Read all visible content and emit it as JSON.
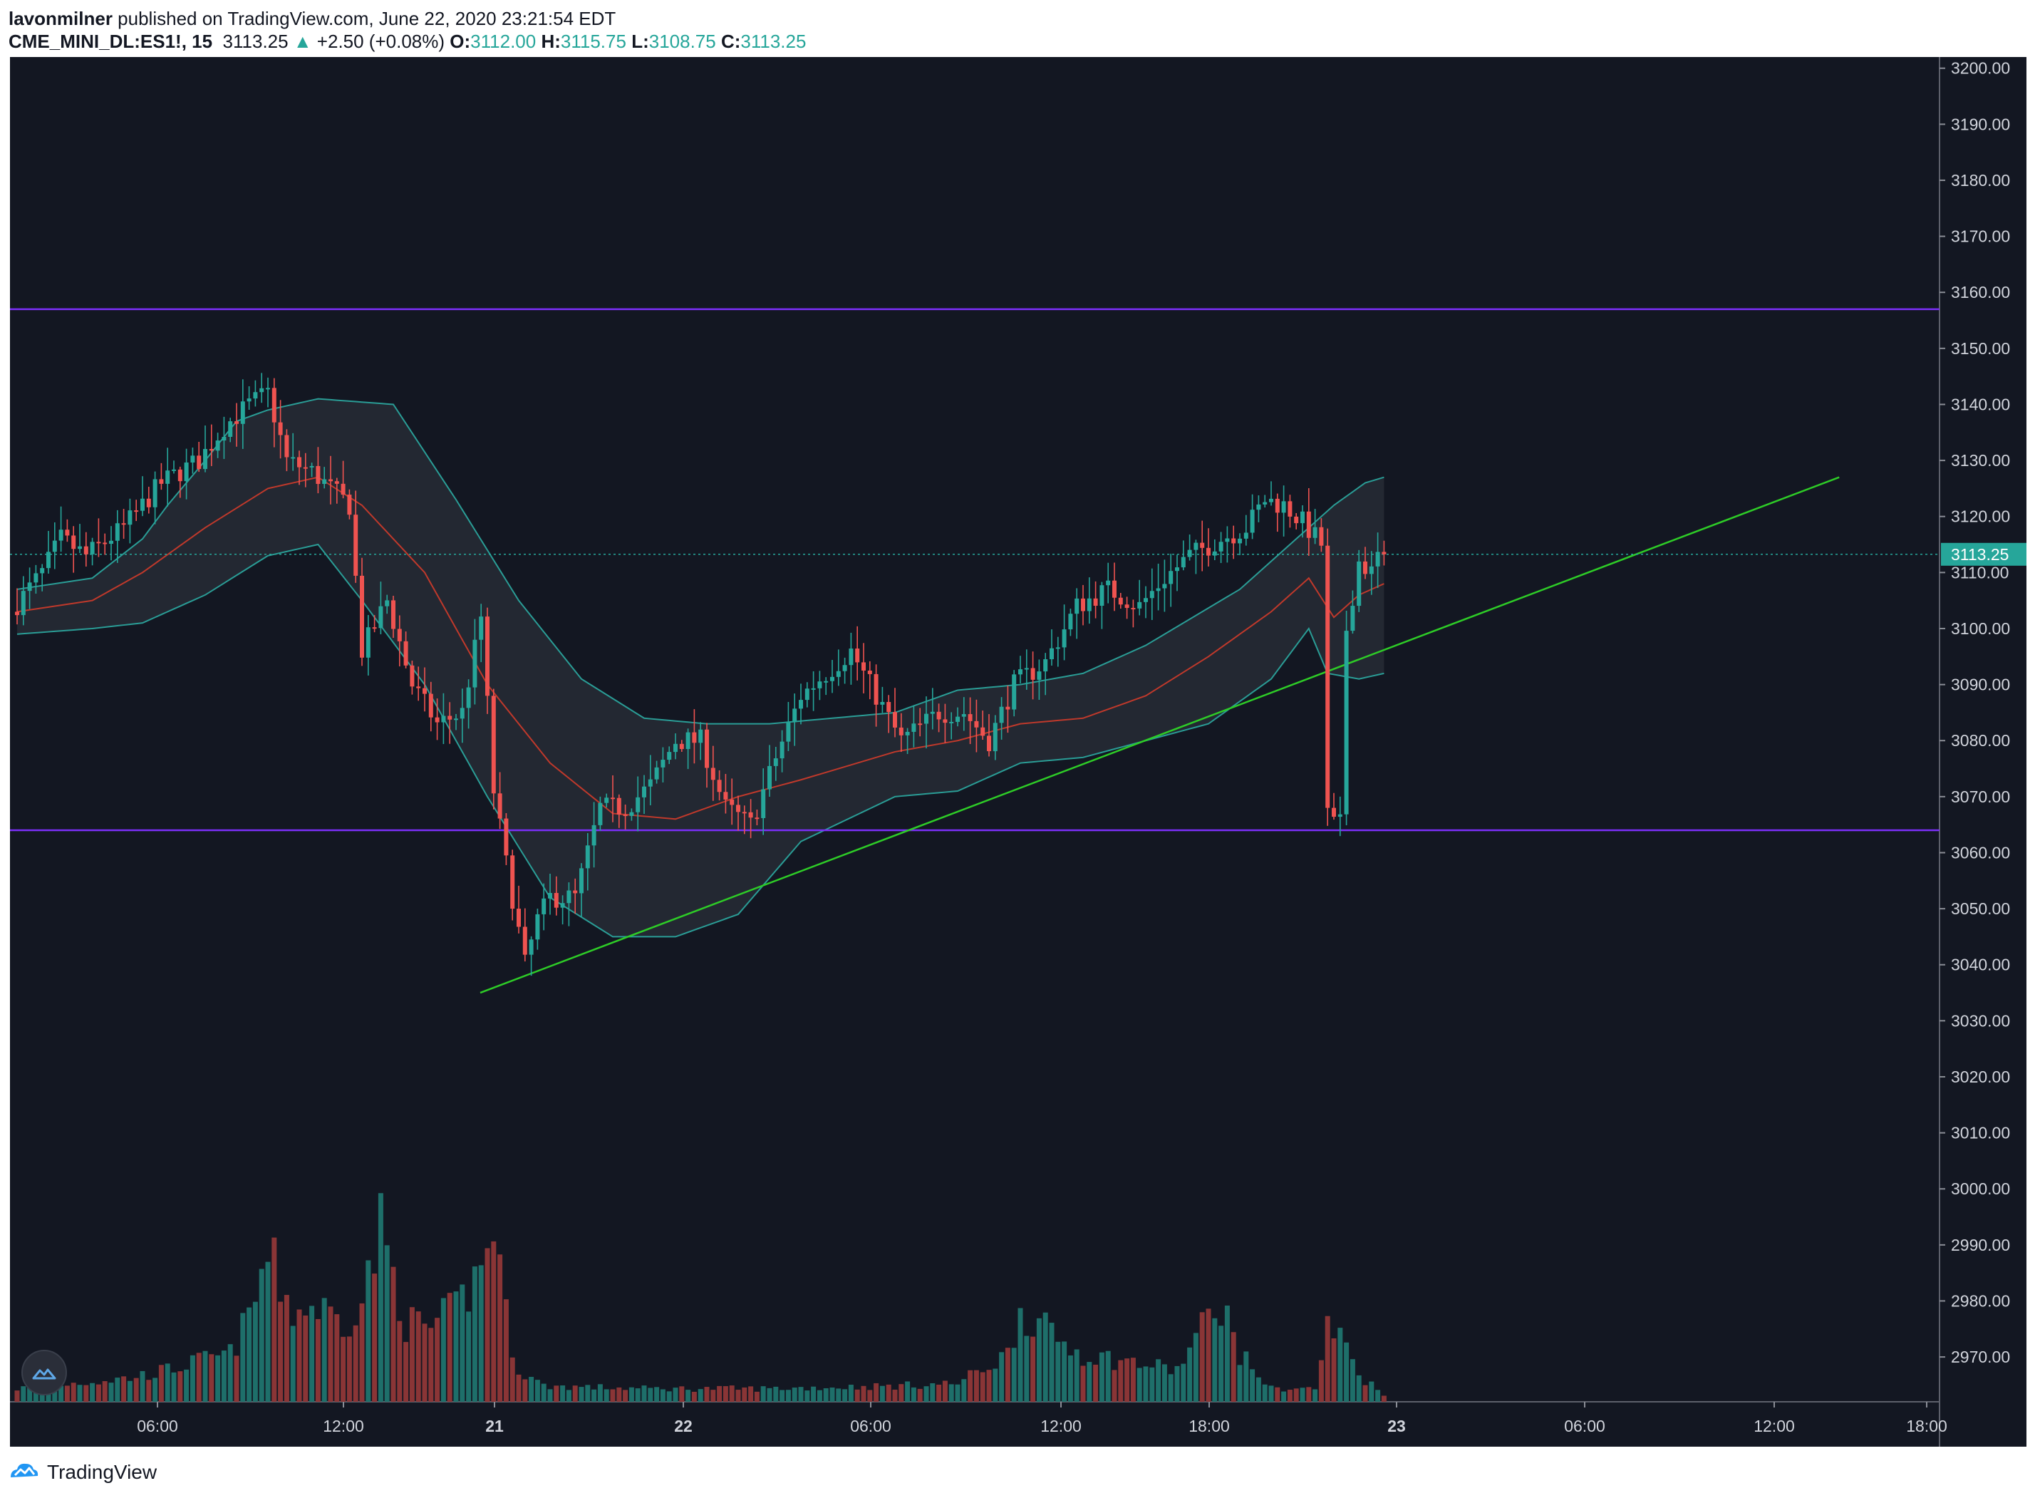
{
  "header": {
    "author": "lavonmilner",
    "published_text": "published on TradingView.com, June 22, 2020 23:21:54 EDT",
    "symbol": "CME_MINI_DL:ES1!, 15",
    "last_price": "3113.25",
    "change_arrow": "▲",
    "change": "+2.50 (+0.08%)",
    "open_label": "O:",
    "open": "3112.00",
    "high_label": "H:",
    "high": "3115.75",
    "low_label": "L:",
    "low": "3108.75",
    "close_label": "C:",
    "close": "3113.25"
  },
  "footer": {
    "brand": "TradingView",
    "logo_icon": "tradingview-logo-icon"
  },
  "badge": {
    "icon": "tradingview-cloud-icon"
  },
  "colors": {
    "background": "#131722",
    "up": "#26a69a",
    "down": "#ef5350",
    "vol_up": "#1e6f6a",
    "vol_down": "#8a3536",
    "level": "#7b2ff7",
    "trendline": "#2ecc27",
    "band_fill": "#262a34",
    "band_line": "#2a9d96",
    "basis": "#c0392b",
    "price_tag": "#26a69a"
  },
  "chart_data": {
    "type": "candlestick",
    "symbol": "CME_MINI_DL:ES1!",
    "interval": "15",
    "ylim": [
      2962,
      3202
    ],
    "y_ticks": [
      "3200.00",
      "3190.00",
      "3180.00",
      "3170.00",
      "3160.00",
      "3150.00",
      "3140.00",
      "3130.00",
      "3120.00",
      "3110.00",
      "3100.00",
      "3090.00",
      "3080.00",
      "3070.00",
      "3060.00",
      "3050.00",
      "3040.00",
      "3030.00",
      "3020.00",
      "3010.00",
      "3000.00",
      "2990.00",
      "2980.00",
      "2970.00"
    ],
    "x_ticks": [
      "06:00",
      "12:00",
      "21",
      "22",
      "06:00",
      "12:00",
      "18:00",
      "23",
      "06:00",
      "12:00",
      "18:00"
    ],
    "last_price_label": "3113.25",
    "horizontal_levels": [
      3157,
      3064
    ],
    "trendline": {
      "start": [
        0,
        3035
      ],
      "end": [
        284,
        3127
      ]
    },
    "bands": {
      "upper": [
        [
          0,
          3107
        ],
        [
          12,
          3109
        ],
        [
          20,
          3116
        ],
        [
          24,
          3122
        ],
        [
          30,
          3130
        ],
        [
          35,
          3137
        ],
        [
          40,
          3139
        ],
        [
          48,
          3141
        ],
        [
          60,
          3140
        ],
        [
          70,
          3123
        ],
        [
          80,
          3105
        ],
        [
          90,
          3091
        ],
        [
          100,
          3084
        ],
        [
          110,
          3083
        ],
        [
          120,
          3083
        ],
        [
          140,
          3085
        ],
        [
          150,
          3089
        ],
        [
          160,
          3090
        ],
        [
          170,
          3092
        ],
        [
          180,
          3097
        ],
        [
          195,
          3107
        ],
        [
          203,
          3115
        ],
        [
          210,
          3122
        ],
        [
          215,
          3126
        ],
        [
          218,
          3127
        ]
      ],
      "basis": [
        [
          0,
          3103
        ],
        [
          12,
          3105
        ],
        [
          20,
          3110
        ],
        [
          30,
          3118
        ],
        [
          40,
          3125
        ],
        [
          48,
          3127
        ],
        [
          55,
          3122
        ],
        [
          65,
          3110
        ],
        [
          75,
          3090
        ],
        [
          85,
          3076
        ],
        [
          95,
          3067
        ],
        [
          105,
          3066
        ],
        [
          115,
          3070
        ],
        [
          125,
          3073
        ],
        [
          140,
          3078
        ],
        [
          150,
          3080
        ],
        [
          160,
          3083
        ],
        [
          170,
          3084
        ],
        [
          180,
          3088
        ],
        [
          190,
          3095
        ],
        [
          200,
          3103
        ],
        [
          206,
          3109
        ],
        [
          210,
          3102
        ],
        [
          214,
          3106
        ],
        [
          218,
          3108
        ]
      ],
      "lower": [
        [
          0,
          3099
        ],
        [
          12,
          3100
        ],
        [
          20,
          3101
        ],
        [
          30,
          3106
        ],
        [
          40,
          3113
        ],
        [
          48,
          3115
        ],
        [
          55,
          3105
        ],
        [
          65,
          3090
        ],
        [
          75,
          3070
        ],
        [
          85,
          3052
        ],
        [
          95,
          3045
        ],
        [
          105,
          3045
        ],
        [
          115,
          3049
        ],
        [
          125,
          3062
        ],
        [
          140,
          3070
        ],
        [
          150,
          3071
        ],
        [
          160,
          3076
        ],
        [
          170,
          3077
        ],
        [
          180,
          3080
        ],
        [
          190,
          3083
        ],
        [
          200,
          3091
        ],
        [
          206,
          3100
        ],
        [
          209,
          3092
        ],
        [
          214,
          3091
        ],
        [
          218,
          3092
        ]
      ]
    },
    "price_path": [
      [
        0,
        3103
      ],
      [
        5,
        3110
      ],
      [
        8,
        3116
      ],
      [
        12,
        3113
      ],
      [
        18,
        3118
      ],
      [
        24,
        3126
      ],
      [
        30,
        3130
      ],
      [
        34,
        3136
      ],
      [
        38,
        3140
      ],
      [
        41,
        3142
      ],
      [
        44,
        3130
      ],
      [
        48,
        3128
      ],
      [
        51,
        3125
      ],
      [
        54,
        3122
      ],
      [
        56,
        3096
      ],
      [
        60,
        3105
      ],
      [
        64,
        3090
      ],
      [
        68,
        3083
      ],
      [
        72,
        3085
      ],
      [
        75,
        3102
      ],
      [
        77,
        3071
      ],
      [
        79,
        3058
      ],
      [
        82,
        3040
      ],
      [
        84,
        3048
      ],
      [
        86,
        3052
      ],
      [
        90,
        3052
      ],
      [
        94,
        3068
      ],
      [
        98,
        3068
      ],
      [
        102,
        3072
      ],
      [
        106,
        3080
      ],
      [
        110,
        3080
      ],
      [
        114,
        3068
      ],
      [
        118,
        3065
      ],
      [
        122,
        3077
      ],
      [
        126,
        3088
      ],
      [
        130,
        3092
      ],
      [
        134,
        3096
      ],
      [
        138,
        3088
      ],
      [
        142,
        3080
      ],
      [
        148,
        3085
      ],
      [
        152,
        3085
      ],
      [
        156,
        3080
      ],
      [
        160,
        3090
      ],
      [
        165,
        3094
      ],
      [
        170,
        3104
      ],
      [
        175,
        3107
      ],
      [
        180,
        3104
      ],
      [
        184,
        3109
      ],
      [
        188,
        3113
      ],
      [
        193,
        3116
      ],
      [
        197,
        3118
      ],
      [
        200,
        3123
      ],
      [
        203,
        3122
      ],
      [
        206,
        3119
      ],
      [
        209,
        3115
      ],
      [
        210,
        3065
      ],
      [
        212,
        3065
      ],
      [
        213,
        3100
      ],
      [
        215,
        3112
      ],
      [
        217,
        3110
      ],
      [
        218,
        3113
      ]
    ],
    "volume_profile": [
      [
        0,
        5
      ],
      [
        18,
        9
      ],
      [
        24,
        12
      ],
      [
        30,
        16
      ],
      [
        34,
        18
      ],
      [
        37,
        32
      ],
      [
        40,
        55
      ],
      [
        44,
        34
      ],
      [
        48,
        36
      ],
      [
        52,
        30
      ],
      [
        55,
        38
      ],
      [
        58,
        65
      ],
      [
        62,
        30
      ],
      [
        66,
        28
      ],
      [
        70,
        35
      ],
      [
        74,
        50
      ],
      [
        76,
        70
      ],
      [
        78,
        32
      ],
      [
        80,
        12
      ],
      [
        84,
        6
      ],
      [
        100,
        5
      ],
      [
        120,
        5
      ],
      [
        140,
        6
      ],
      [
        150,
        7
      ],
      [
        158,
        18
      ],
      [
        160,
        35
      ],
      [
        165,
        25
      ],
      [
        170,
        18
      ],
      [
        180,
        14
      ],
      [
        185,
        12
      ],
      [
        190,
        32
      ],
      [
        192,
        38
      ],
      [
        195,
        18
      ],
      [
        200,
        5
      ],
      [
        207,
        5
      ],
      [
        209,
        28
      ],
      [
        212,
        22
      ],
      [
        214,
        10
      ],
      [
        218,
        3
      ]
    ]
  }
}
